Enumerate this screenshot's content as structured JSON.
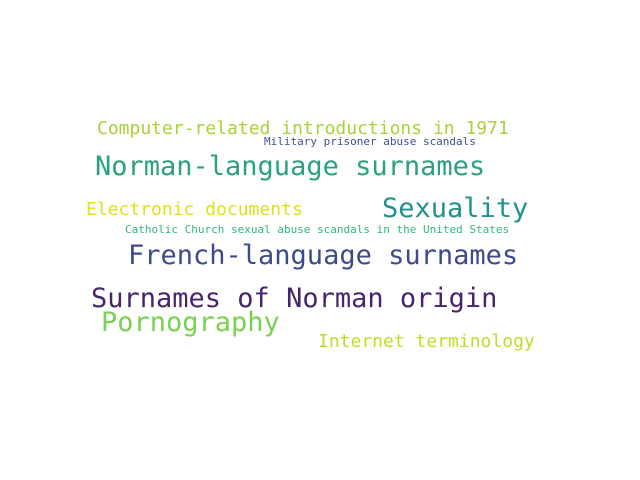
{
  "words": [
    {
      "id": "computer",
      "text": "Computer-related introductions in 1971",
      "color": "#a7d23c"
    },
    {
      "id": "military",
      "text": "Military prisoner abuse scandals",
      "color": "#3b528b"
    },
    {
      "id": "norman",
      "text": "Norman-language surnames",
      "color": "#2aa17f"
    },
    {
      "id": "electronic",
      "text": "Electronic documents",
      "color": "#dde318"
    },
    {
      "id": "sexuality",
      "text": "Sexuality",
      "color": "#21918c"
    },
    {
      "id": "catholic",
      "text": "Catholic Church sexual abuse scandals in the United States",
      "color": "#35b779"
    },
    {
      "id": "french",
      "text": "French-language surnames",
      "color": "#3e4a89"
    },
    {
      "id": "surnames",
      "text": "Surnames of Norman origin",
      "color": "#46256b"
    },
    {
      "id": "porn",
      "text": "Pornography",
      "color": "#7ad151"
    },
    {
      "id": "internet",
      "text": "Internet terminology",
      "color": "#bddf26"
    }
  ]
}
